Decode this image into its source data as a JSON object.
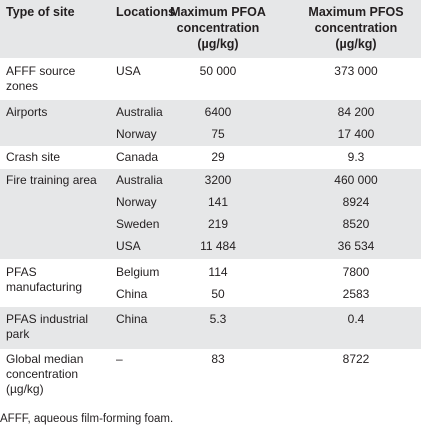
{
  "table": {
    "headers": {
      "type": "Type of site",
      "locations": "Locations",
      "pfoa_1": "Maximum PFOA",
      "pfoa_2": "concentration",
      "pfoa_3": "(µg/kg)",
      "pfos_1": "Maximum PFOS",
      "pfos_2": "concentration",
      "pfos_3": "(µg/kg)"
    },
    "rows": [
      {
        "type1": "AFFF source",
        "type2": "zones",
        "location": "USA",
        "pfoa": "50 000",
        "pfos": "373 000"
      },
      {
        "type1": "Airports",
        "location": "Australia",
        "pfoa": "6400",
        "pfos": "84 200"
      },
      {
        "location": "Norway",
        "pfoa": "75",
        "pfos": "17 400"
      },
      {
        "type1": "Crash site",
        "location": "Canada",
        "pfoa": "29",
        "pfos": "9.3"
      },
      {
        "type1": "Fire training area",
        "location": "Australia",
        "pfoa": "3200",
        "pfos": "460 000"
      },
      {
        "location": "Norway",
        "pfoa": "141",
        "pfos": "8924"
      },
      {
        "location": "Sweden",
        "pfoa": "219",
        "pfos": "8520"
      },
      {
        "location": "USA",
        "pfoa": "11 484",
        "pfos": "36 534"
      },
      {
        "type1": "PFAS",
        "type2": "manufacturing",
        "location": "Belgium",
        "pfoa": "114",
        "pfos": "7800"
      },
      {
        "location": "China",
        "pfoa": "50",
        "pfos": "2583"
      },
      {
        "type1": "PFAS industrial",
        "type2": "park",
        "location": "China",
        "pfoa": "5.3",
        "pfos": "0.4"
      },
      {
        "type1": "Global median",
        "type2": "concentration",
        "type3": "(µg/kg)",
        "location": "–",
        "pfoa": "83",
        "pfos": "8722"
      }
    ]
  },
  "footnote": "AFFF, aqueous film-forming foam."
}
